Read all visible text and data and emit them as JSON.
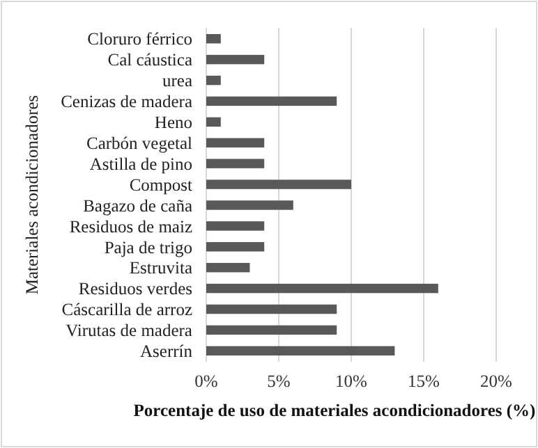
{
  "chart_data": {
    "type": "bar",
    "orientation": "horizontal",
    "xlabel": "Porcentaje de uso de materiales acondicionadores (%)",
    "ylabel": "Materiales acondicionadores",
    "categories": [
      "Cloruro férrico",
      "Cal cáustica",
      "urea",
      "Cenizas de madera",
      "Heno",
      "Carbón vegetal",
      "Astilla de pino",
      "Compost",
      "Bagazo de caña",
      "Residuos de maiz",
      "Paja de trigo",
      "Estruvita",
      "Residuos verdes",
      "Cáscarilla de arroz",
      "Virutas de madera",
      "Aserrín"
    ],
    "values": [
      1,
      4,
      1,
      9,
      1,
      4,
      4,
      10,
      6,
      4,
      4,
      3,
      16,
      9,
      9,
      13
    ],
    "color": "#595959",
    "xlim": [
      0,
      20
    ],
    "xticks": [
      {
        "value": 0,
        "label": "0%"
      },
      {
        "value": 5,
        "label": "5%"
      },
      {
        "value": 10,
        "label": "10%"
      },
      {
        "value": 15,
        "label": "15%"
      },
      {
        "value": 20,
        "label": "20%"
      }
    ],
    "grid": "x"
  }
}
